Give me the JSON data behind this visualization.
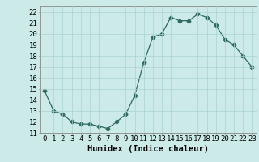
{
  "x": [
    0,
    1,
    2,
    3,
    4,
    5,
    6,
    7,
    8,
    9,
    10,
    11,
    12,
    13,
    14,
    15,
    16,
    17,
    18,
    19,
    20,
    21,
    22,
    23
  ],
  "y": [
    14.8,
    13.0,
    12.7,
    12.0,
    11.8,
    11.8,
    11.6,
    11.4,
    12.0,
    12.7,
    14.4,
    17.4,
    19.7,
    20.0,
    21.5,
    21.2,
    21.2,
    21.8,
    21.5,
    20.8,
    19.5,
    19.0,
    18.0,
    17.0
  ],
  "line_color": "#2e6b5e",
  "marker": "D",
  "marker_size": 2.5,
  "bg_color": "#cceae8",
  "grid_color": "#aad4d1",
  "xlabel": "Humidex (Indice chaleur)",
  "xlim": [
    -0.5,
    23.5
  ],
  "ylim": [
    11,
    22.5
  ],
  "yticks": [
    11,
    12,
    13,
    14,
    15,
    16,
    17,
    18,
    19,
    20,
    21,
    22
  ],
  "xticks": [
    0,
    1,
    2,
    3,
    4,
    5,
    6,
    7,
    8,
    9,
    10,
    11,
    12,
    13,
    14,
    15,
    16,
    17,
    18,
    19,
    20,
    21,
    22,
    23
  ],
  "tick_fontsize": 6.5,
  "xlabel_fontsize": 7.5
}
